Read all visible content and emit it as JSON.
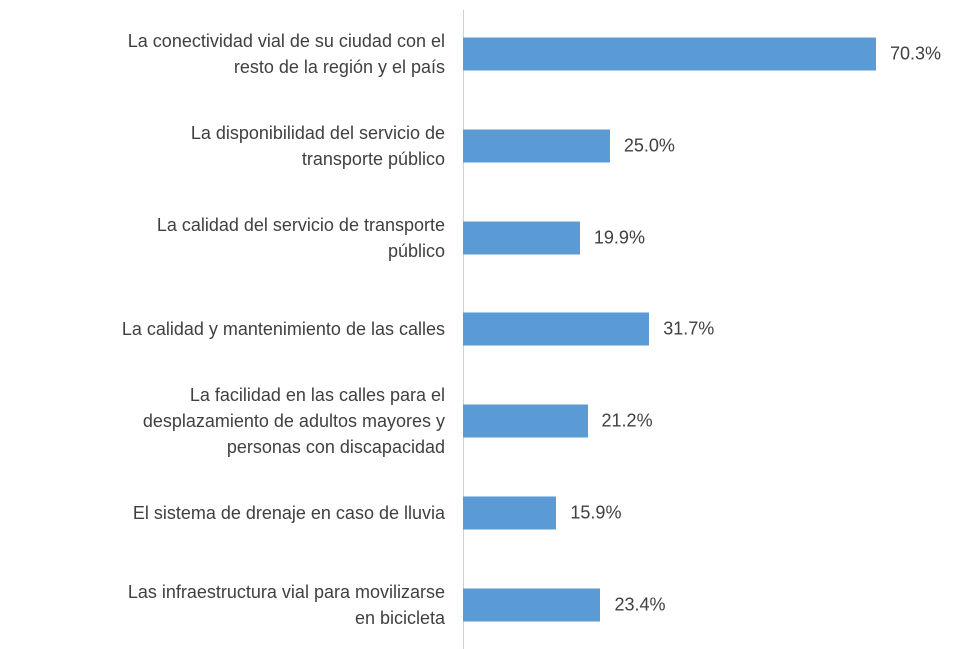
{
  "chart_data": {
    "type": "bar",
    "orientation": "horizontal",
    "categories": [
      "La conectividad vial de su ciudad con el\nresto de la región y el país",
      "La disponibilidad del servicio de\ntransporte público",
      "La calidad del servicio de transporte\npúblico",
      "La calidad y mantenimiento de las calles",
      "La facilidad en las calles para el\ndesplazamiento de adultos mayores y\npersonas con discapacidad",
      "El sistema de drenaje en caso de lluvia",
      "Las infraestructura vial para movilizarse\nen bicicleta"
    ],
    "values": [
      70.3,
      25.0,
      19.9,
      31.7,
      21.2,
      15.9,
      23.4
    ],
    "value_labels": [
      "70.3%",
      "25.0%",
      "19.9%",
      "31.7%",
      "21.2%",
      "15.9%",
      "23.4%"
    ],
    "color": "#5b9bd5"
  }
}
